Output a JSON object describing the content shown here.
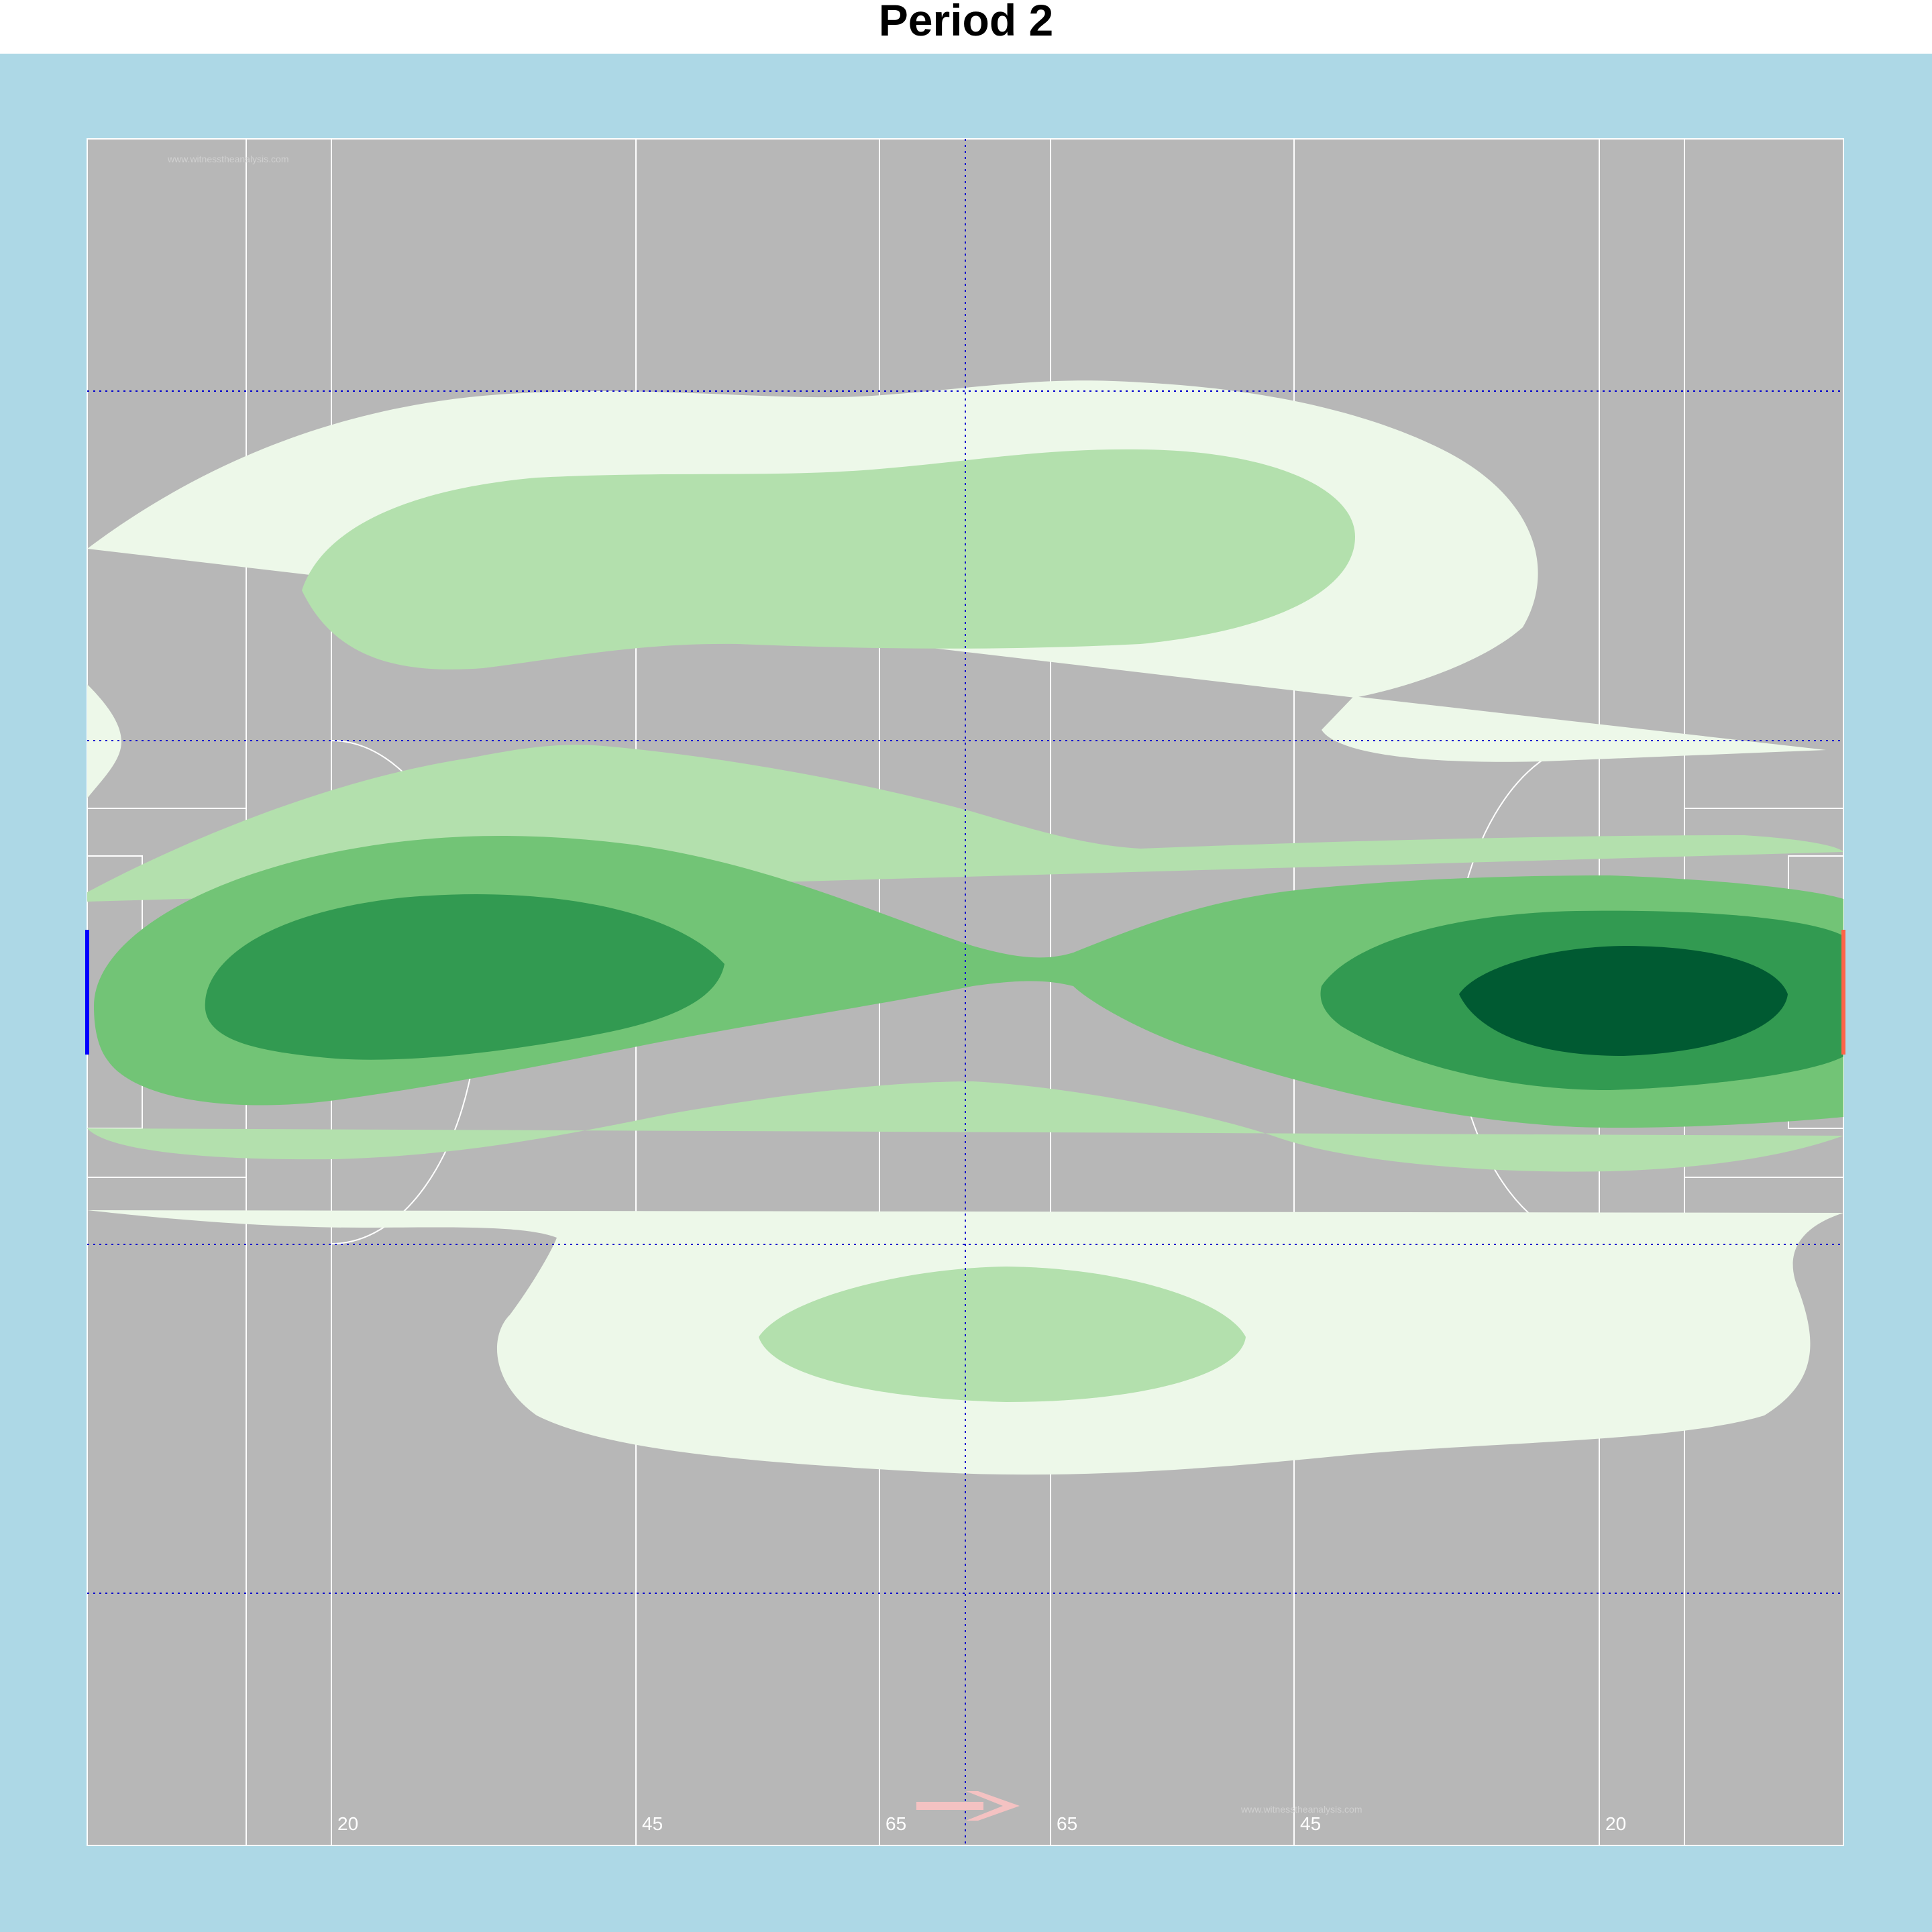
{
  "title": "Period 2",
  "watermark": "www.witnesstheanalysis.com",
  "colors": {
    "background": "#add8e6",
    "pitch": "#b7b7b7",
    "lines": "#ffffff",
    "grid": "#0000cd",
    "arrow": "#f4c2c2",
    "left_goal": "#0000ff",
    "right_goal": "#ff6347",
    "density_levels": [
      "#edf8e9",
      "#b3e0ad",
      "#72c476",
      "#329a51",
      "#005a32"
    ]
  },
  "chart_data": {
    "type": "heatmap",
    "title": "Period 2",
    "attack_direction": "right",
    "pitch_line_labels": [
      "20",
      "45",
      "65",
      "65",
      "45",
      "20"
    ],
    "density_levels": 5,
    "hotspots": [
      {
        "location": "left 20m-45m zone, central channel",
        "max_level": 4
      },
      {
        "location": "right 20m zone, central channel",
        "max_level": 5
      },
      {
        "location": "upper channel, 20m to 45m (right)",
        "max_level": 2
      },
      {
        "location": "lower channel, around halfway",
        "max_level": 2
      }
    ],
    "grid": true
  }
}
